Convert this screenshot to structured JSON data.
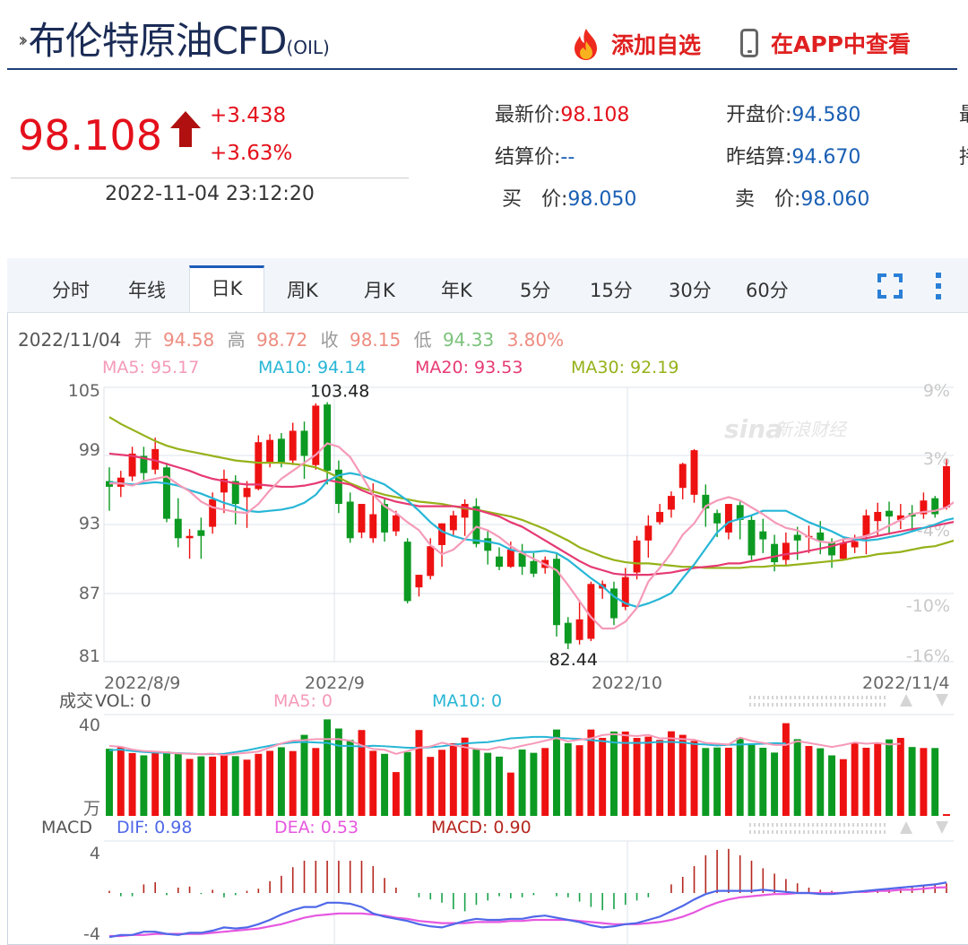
{
  "header": {
    "title": "布伦特原油CFD",
    "title_sub": "(OIL)",
    "add_watch_label": "添加自选",
    "view_app_label": "在APP中查看"
  },
  "quote": {
    "price": "98.108",
    "change": "+3.438",
    "change_pct": "+3.63%",
    "time": "2022-11-04 23:12:20",
    "fields": [
      {
        "label": "最新价:",
        "value": "98.108"
      },
      {
        "label": "开盘价:",
        "value": "94.580"
      },
      {
        "label": "结算价:",
        "value": "--"
      },
      {
        "label": "昨结算:",
        "value": "94.670"
      },
      {
        "label": "买　价:",
        "value": "98.050"
      },
      {
        "label": "卖　价:",
        "value": "98.060"
      }
    ],
    "cut_labels": [
      "最",
      "持"
    ]
  },
  "tabs": [
    "分时",
    "年线",
    "日K",
    "周K",
    "月K",
    "年K",
    "5分",
    "15分",
    "30分",
    "60分"
  ],
  "active_tab": "日K",
  "colors": {
    "up": "#ee1111",
    "down": "#0c9a22",
    "ma5": "#f59ab8",
    "ma10": "#27b6d6",
    "ma20": "#e63a72",
    "ma30": "#95b21a",
    "dif": "#4f68e8",
    "dea": "#e657e0",
    "accent": "#1d5bb8"
  },
  "chart_data": [
    {
      "type": "candlestick",
      "info_line": {
        "date": "2022/11/04",
        "open_label": "开",
        "open": "94.58",
        "high_label": "高",
        "high": "98.72",
        "close_label": "收",
        "close": "98.15",
        "low_label": "低",
        "low": "94.33",
        "pct": "3.80%"
      },
      "ma_legend": [
        {
          "text": "MA5: 95.17",
          "color": "#f59ab8"
        },
        {
          "text": "MA10: 94.14",
          "color": "#27b6d6"
        },
        {
          "text": "MA20: 93.53",
          "color": "#e63a72"
        },
        {
          "text": "MA30: 92.19",
          "color": "#95b21a"
        }
      ],
      "y_ticks": [
        "105",
        "99",
        "93",
        "87",
        "81"
      ],
      "pct_ticks": [
        "9%",
        "3%",
        "-4%",
        "-10%",
        "-16%"
      ],
      "ylim": [
        81,
        105
      ],
      "x_labels": [
        "2022/8/9",
        "2022/9",
        "2022/10",
        "2022/11/4"
      ],
      "max_label": "103.48",
      "min_label": "82.44",
      "watermark": "新浪财经",
      "watermark_brand": "sina",
      "grid": true,
      "candles": [
        [
          96.8,
          96.3,
          98.0,
          94.2
        ],
        [
          96.3,
          97.1,
          97.7,
          95.4
        ],
        [
          97.2,
          99.2,
          99.8,
          96.8
        ],
        [
          99.0,
          97.5,
          99.8,
          96.9
        ],
        [
          97.8,
          99.6,
          100.6,
          97.4
        ],
        [
          98.0,
          93.5,
          98.4,
          93.2
        ],
        [
          93.5,
          91.8,
          95.3,
          91.0
        ],
        [
          91.8,
          92.0,
          92.6,
          90.0
        ],
        [
          92.5,
          92.0,
          93.6,
          90.0
        ],
        [
          92.8,
          95.2,
          95.8,
          92.2
        ],
        [
          95.8,
          97.0,
          97.8,
          94.0
        ],
        [
          96.8,
          94.8,
          97.3,
          93.0
        ],
        [
          95.4,
          96.2,
          96.8,
          92.7
        ],
        [
          96.1,
          100.2,
          100.8,
          96.0
        ],
        [
          98.4,
          100.4,
          100.9,
          98.0
        ],
        [
          100.5,
          98.4,
          101.0,
          98.0
        ],
        [
          98.6,
          101.2,
          101.9,
          98.2
        ],
        [
          101.2,
          99.0,
          102.0,
          97.0
        ],
        [
          98.2,
          103.4,
          103.6,
          97.8
        ],
        [
          103.5,
          97.7,
          103.7,
          96.5
        ],
        [
          97.8,
          94.8,
          98.6,
          94.0
        ],
        [
          95.0,
          91.8,
          95.8,
          91.4
        ],
        [
          92.3,
          94.8,
          94.8,
          91.8
        ],
        [
          91.8,
          93.9,
          96.6,
          91.4
        ],
        [
          94.8,
          92.3,
          95.3,
          91.5
        ],
        [
          92.4,
          93.8,
          94.2,
          92.0
        ],
        [
          91.5,
          86.3,
          91.8,
          86.1
        ],
        [
          87.5,
          88.6,
          88.6,
          86.7
        ],
        [
          88.5,
          91.1,
          91.8,
          88.2
        ],
        [
          91.2,
          93.1,
          93.1,
          89.3
        ],
        [
          92.5,
          93.8,
          94.2,
          92.0
        ],
        [
          93.6,
          94.8,
          95.2,
          92.0
        ],
        [
          94.6,
          91.3,
          95.3,
          91.0
        ],
        [
          91.8,
          90.7,
          92.5,
          89.5
        ],
        [
          90.2,
          89.3,
          91.0,
          89.0
        ],
        [
          89.3,
          90.8,
          91.5,
          89.2
        ],
        [
          90.5,
          89.3,
          91.3,
          88.6
        ],
        [
          89.8,
          88.7,
          90.5,
          88.4
        ],
        [
          89.2,
          89.9,
          90.2,
          88.7
        ],
        [
          90.0,
          84.2,
          90.4,
          83.2
        ],
        [
          84.4,
          82.6,
          84.9,
          82.1
        ],
        [
          82.9,
          84.7,
          86.4,
          82.5
        ],
        [
          83.0,
          87.8,
          88.0,
          82.8
        ],
        [
          87.4,
          87.8,
          88.1,
          86.5
        ],
        [
          87.4,
          84.8,
          88.0,
          84.2
        ],
        [
          85.8,
          88.4,
          89.2,
          85.5
        ],
        [
          88.8,
          91.6,
          92.0,
          88.2
        ],
        [
          91.6,
          92.9,
          93.8,
          90.1
        ],
        [
          93.2,
          94.1,
          94.8,
          93.0
        ],
        [
          94.3,
          95.5,
          95.9,
          93.6
        ],
        [
          96.2,
          98.3,
          98.4,
          95.2
        ],
        [
          95.6,
          99.5,
          99.6,
          94.9
        ],
        [
          95.6,
          94.4,
          96.5,
          92.8
        ],
        [
          94.0,
          93.1,
          94.3,
          91.9
        ],
        [
          92.3,
          94.8,
          94.8,
          91.7
        ],
        [
          94.7,
          93.4,
          95.0,
          91.7
        ],
        [
          93.4,
          90.3,
          93.8,
          89.9
        ],
        [
          92.4,
          91.7,
          93.5,
          90.5
        ],
        [
          91.3,
          89.7,
          92.1,
          88.9
        ],
        [
          89.9,
          91.4,
          92.3,
          89.4
        ],
        [
          92.1,
          91.6,
          92.8,
          89.9
        ],
        [
          91.9,
          92.0,
          92.9,
          90.5
        ],
        [
          92.3,
          91.6,
          93.3,
          90.4
        ],
        [
          91.4,
          90.3,
          91.8,
          89.2
        ],
        [
          90.0,
          91.4,
          91.8,
          89.9
        ],
        [
          91.0,
          91.5,
          92.1,
          90.5
        ],
        [
          92.0,
          93.8,
          94.3,
          90.4
        ],
        [
          93.3,
          94.1,
          94.9,
          92.0
        ],
        [
          94.2,
          93.7,
          95.0,
          92.1
        ],
        [
          93.4,
          93.8,
          94.8,
          92.6
        ],
        [
          94.0,
          93.7,
          94.7,
          92.4
        ],
        [
          93.9,
          95.1,
          95.8,
          93.5
        ],
        [
          95.3,
          93.9,
          95.5,
          93.6
        ],
        [
          94.5,
          98.1,
          98.7,
          94.3
        ]
      ],
      "ma5": [
        96.6,
        96.6,
        96.4,
        96.8,
        97.0,
        97.2,
        96.5,
        95.9,
        95.0,
        94.5,
        94.3,
        94.1,
        94.0,
        94.8,
        96.0,
        97.0,
        97.7,
        98.4,
        99.1,
        100.1,
        99.8,
        98.9,
        97.3,
        95.6,
        94.6,
        94.0,
        93.2,
        92.5,
        91.2,
        90.4,
        90.8,
        91.7,
        92.8,
        92.5,
        91.9,
        91.1,
        90.5,
        90.0,
        89.5,
        89.0,
        87.7,
        86.3,
        84.9,
        83.9,
        83.9,
        84.5,
        85.7,
        88.0,
        89.2,
        90.5,
        92.1,
        93.1,
        94.6,
        95.1,
        95.4,
        95.1,
        94.5,
        93.9,
        93.2,
        92.7,
        92.5,
        91.9,
        91.5,
        91.4,
        91.7,
        91.8,
        92.0,
        92.4,
        92.9,
        93.4,
        93.9,
        94.1,
        94.2,
        94.5,
        95.2
      ],
      "ma10": [
        96.7,
        96.6,
        96.5,
        96.6,
        96.7,
        96.6,
        96.4,
        96.0,
        95.7,
        95.3,
        94.9,
        94.6,
        94.2,
        94.1,
        94.2,
        94.3,
        94.5,
        94.9,
        95.6,
        96.8,
        97.3,
        97.5,
        97.3,
        96.9,
        96.5,
        95.8,
        95.1,
        94.2,
        93.2,
        92.4,
        92.0,
        91.7,
        91.6,
        91.5,
        91.3,
        90.8,
        90.6,
        90.6,
        90.7,
        90.5,
        89.9,
        89.1,
        88.3,
        87.6,
        86.7,
        86.1,
        85.8,
        86.1,
        86.5,
        87.0,
        88.3,
        89.5,
        90.9,
        92.3,
        93.2,
        93.5,
        93.8,
        94.2,
        94.2,
        94.2,
        93.7,
        93.2,
        92.8,
        92.4,
        91.9,
        91.7,
        91.6,
        91.7,
        91.9,
        92.1,
        92.4,
        92.7,
        93.0,
        93.4,
        93.6,
        94.3
      ],
      "ma20": [
        99.2,
        99.1,
        99.0,
        98.8,
        98.6,
        98.3,
        98.0,
        97.7,
        97.3,
        97.0,
        96.8,
        96.6,
        96.5,
        96.5,
        96.4,
        96.3,
        96.3,
        96.4,
        96.6,
        96.9,
        96.7,
        96.5,
        96.0,
        95.6,
        95.3,
        95.0,
        94.8,
        94.6,
        94.6,
        94.6,
        94.6,
        94.5,
        94.3,
        94.0,
        93.7,
        93.2,
        92.8,
        92.2,
        91.6,
        91.0,
        90.4,
        89.8,
        89.3,
        89.0,
        88.7,
        88.6,
        88.6,
        88.6,
        88.7,
        88.8,
        89.0,
        89.2,
        89.3,
        89.4,
        89.6,
        89.6,
        89.8,
        90.0,
        90.2,
        90.4,
        90.5,
        90.7,
        90.9,
        91.1,
        91.4,
        91.6,
        91.8,
        92.0,
        92.2,
        92.4,
        92.6,
        92.7,
        92.9,
        93.1,
        93.3
      ],
      "ma30": [
        102.4,
        101.8,
        101.3,
        100.8,
        100.3,
        99.9,
        99.6,
        99.4,
        99.2,
        99.0,
        98.8,
        98.6,
        98.5,
        98.4,
        98.4,
        98.4,
        98.3,
        98.2,
        98.0,
        97.6,
        97.1,
        96.6,
        96.2,
        95.9,
        95.6,
        95.4,
        95.2,
        95.0,
        94.9,
        94.8,
        94.6,
        94.4,
        94.3,
        94.1,
        93.9,
        93.7,
        93.4,
        93.0,
        92.6,
        92.1,
        91.6,
        91.0,
        90.6,
        90.2,
        89.9,
        89.7,
        89.6,
        89.6,
        89.5,
        89.4,
        89.3,
        89.3,
        89.2,
        89.2,
        89.2,
        89.2,
        89.3,
        89.3,
        89.4,
        89.4,
        89.5,
        89.6,
        89.7,
        89.8,
        89.9,
        90.1,
        90.2,
        90.4,
        90.5,
        90.6,
        90.8,
        91.0,
        91.1,
        91.4,
        91.7
      ]
    },
    {
      "type": "bar",
      "title": "成交",
      "legend": [
        {
          "text": "VOL: 0",
          "color": "#555"
        },
        {
          "text": "MA5: 0",
          "color": "#f59ab8"
        },
        {
          "text": "MA10: 0",
          "color": "#27b6d6"
        }
      ],
      "unit_label": "万",
      "y_ticks": [
        "40"
      ],
      "ylim": [
        0,
        40
      ],
      "values": [
        26.5,
        27.3,
        24.8,
        23.9,
        24.9,
        25.4,
        24.4,
        22.5,
        23.5,
        23.4,
        24.3,
        23.6,
        22.2,
        24.5,
        25.7,
        27.1,
        25.6,
        32.0,
        26.8,
        38.1,
        34.5,
        30.0,
        33.9,
        25.7,
        24.5,
        17.3,
        25.2,
        33.9,
        23.3,
        26.1,
        28.7,
        30.9,
        26.3,
        24.9,
        23.4,
        17.1,
        26.2,
        24.9,
        26.8,
        34.1,
        28.7,
        27.9,
        34.1,
        30.8,
        33.3,
        33.3,
        30.8,
        31.3,
        30.0,
        33.4,
        32.0,
        29.6,
        26.8,
        27.0,
        26.9,
        30.8,
        28.1,
        26.9,
        25.0,
        36.6,
        30.3,
        27.6,
        26.7,
        23.9,
        22.4,
        28.8,
        26.9,
        28.8,
        30.2,
        30.8,
        27.2,
        26.8,
        26.8,
        0.7
      ],
      "ma5": [
        27.6,
        27.3,
        26.2,
        25.6,
        25.4,
        25.1,
        24.7,
        24.5,
        24.4,
        24.6,
        24.0,
        24.5,
        24.9,
        25.4,
        27.0,
        28.6,
        29.7,
        29.9,
        30.3,
        30.3,
        30.3,
        29.7,
        27.8,
        26.4,
        26.1,
        24.5,
        25.6,
        26.9,
        27.4,
        28.9,
        27.9,
        27.1,
        26.4,
        26.1,
        27.2,
        26.6,
        27.7,
        28.6,
        29.7,
        30.7,
        29.4,
        30.1,
        30.6,
        31.9,
        32.3,
        31.8,
        31.5,
        32.0,
        30.6,
        30.6,
        30.3,
        30.1,
        28.8,
        28.5,
        28.2,
        30.9,
        29.6,
        28.8,
        28.0,
        28.0,
        29.5,
        28.8,
        28.0,
        27.2,
        28.0,
        29.0,
        28.5,
        28.8,
        28.2,
        28.5
      ],
      "ma10": [
        25.9,
        26.2,
        25.6,
        25.2,
        25.0,
        24.9,
        24.8,
        24.6,
        24.4,
        24.4,
        24.5,
        25.2,
        25.9,
        26.8,
        27.7,
        28.5,
        29.0,
        29.2,
        29.0,
        28.8,
        27.7,
        27.6,
        27.4,
        27.7,
        27.5,
        27.2,
        26.9,
        26.9,
        27.1,
        27.5,
        28.1,
        28.6,
        28.9,
        29.1,
        29.8,
        30.6,
        30.9,
        31.2,
        31.2,
        30.8,
        30.6,
        30.4,
        29.9,
        29.5,
        29.0,
        28.8,
        28.8,
        28.9,
        29.2,
        29.2,
        29.0,
        28.4,
        28.2,
        27.8,
        28.1,
        28.2,
        28.3,
        28.5,
        28.7,
        28.6
      ]
    },
    {
      "type": "bar",
      "title": "MACD",
      "legend": [
        {
          "text": "DIF: 0.98",
          "color": "#4f68e8"
        },
        {
          "text": "DEA: 0.53",
          "color": "#e657e0"
        },
        {
          "text": "MACD: 0.90",
          "color": "#b5271e"
        }
      ],
      "y_ticks": [
        "4",
        "-4"
      ],
      "ylim": [
        -4,
        4
      ],
      "hist": [
        0.2,
        -0.3,
        -0.3,
        0.8,
        1.0,
        -0.2,
        0.5,
        0.6,
        -0.1,
        0.3,
        -0.4,
        -0.2,
        0.2,
        0.4,
        1.1,
        1.6,
        2.4,
        3.0,
        3.0,
        3.0,
        3.0,
        3.0,
        3.0,
        2.5,
        1.4,
        0.5,
        0.0,
        -0.4,
        -0.6,
        -0.9,
        -1.5,
        -1.7,
        -1.1,
        -0.7,
        -0.3,
        -0.5,
        -0.4,
        -0.2,
        0.0,
        -0.3,
        -0.4,
        -0.8,
        -1.3,
        -1.6,
        -1.5,
        -1.1,
        -0.7,
        -0.4,
        0.0,
        0.8,
        1.5,
        2.5,
        3.5,
        4.0,
        4.1,
        3.5,
        3.0,
        2.3,
        1.8,
        1.3,
        0.9,
        0.5,
        0.3,
        0.2,
        0.1,
        0.1,
        0.2,
        0.3,
        0.4,
        0.5,
        0.6,
        0.7,
        0.8,
        0.9
      ],
      "dif": [
        -4.1,
        -3.9,
        -3.9,
        -3.6,
        -3.6,
        -3.8,
        -3.9,
        -3.7,
        -3.7,
        -3.5,
        -3.2,
        -3.3,
        -3.2,
        -2.9,
        -2.5,
        -2.0,
        -1.6,
        -1.3,
        -1.3,
        -0.9,
        -0.9,
        -1.0,
        -1.3,
        -1.9,
        -2.2,
        -2.4,
        -2.6,
        -2.9,
        -3.1,
        -3.2,
        -2.9,
        -2.6,
        -2.4,
        -2.5,
        -2.5,
        -2.4,
        -2.4,
        -2.2,
        -2.1,
        -2.3,
        -2.5,
        -2.7,
        -3.0,
        -3.2,
        -3.1,
        -2.9,
        -2.8,
        -2.5,
        -2.2,
        -1.7,
        -1.2,
        -0.6,
        -0.1,
        0.2,
        0.2,
        0.2,
        0.2,
        0.3,
        0.2,
        0.1,
        0.0,
        0.0,
        -0.1,
        -0.1,
        0.0,
        0.1,
        0.2,
        0.3,
        0.4,
        0.5,
        0.6,
        0.7,
        0.8,
        0.98
      ],
      "dea": [
        -4.0,
        -4.0,
        -3.9,
        -3.9,
        -3.8,
        -3.8,
        -3.8,
        -3.8,
        -3.8,
        -3.7,
        -3.6,
        -3.5,
        -3.4,
        -3.3,
        -3.1,
        -2.9,
        -2.6,
        -2.3,
        -2.1,
        -2.0,
        -1.9,
        -1.9,
        -1.9,
        -2.0,
        -2.1,
        -2.3,
        -2.4,
        -2.6,
        -2.7,
        -2.8,
        -2.8,
        -2.8,
        -2.7,
        -2.7,
        -2.7,
        -2.6,
        -2.6,
        -2.5,
        -2.5,
        -2.5,
        -2.5,
        -2.6,
        -2.7,
        -2.8,
        -2.9,
        -2.9,
        -2.9,
        -2.8,
        -2.7,
        -2.5,
        -2.2,
        -1.8,
        -1.3,
        -0.9,
        -0.6,
        -0.4,
        -0.3,
        -0.2,
        -0.1,
        -0.1,
        0.0,
        0.0,
        0.0,
        0.0,
        0.0,
        0.1,
        0.1,
        0.2,
        0.2,
        0.3,
        0.3,
        0.4,
        0.5,
        0.53
      ]
    }
  ]
}
